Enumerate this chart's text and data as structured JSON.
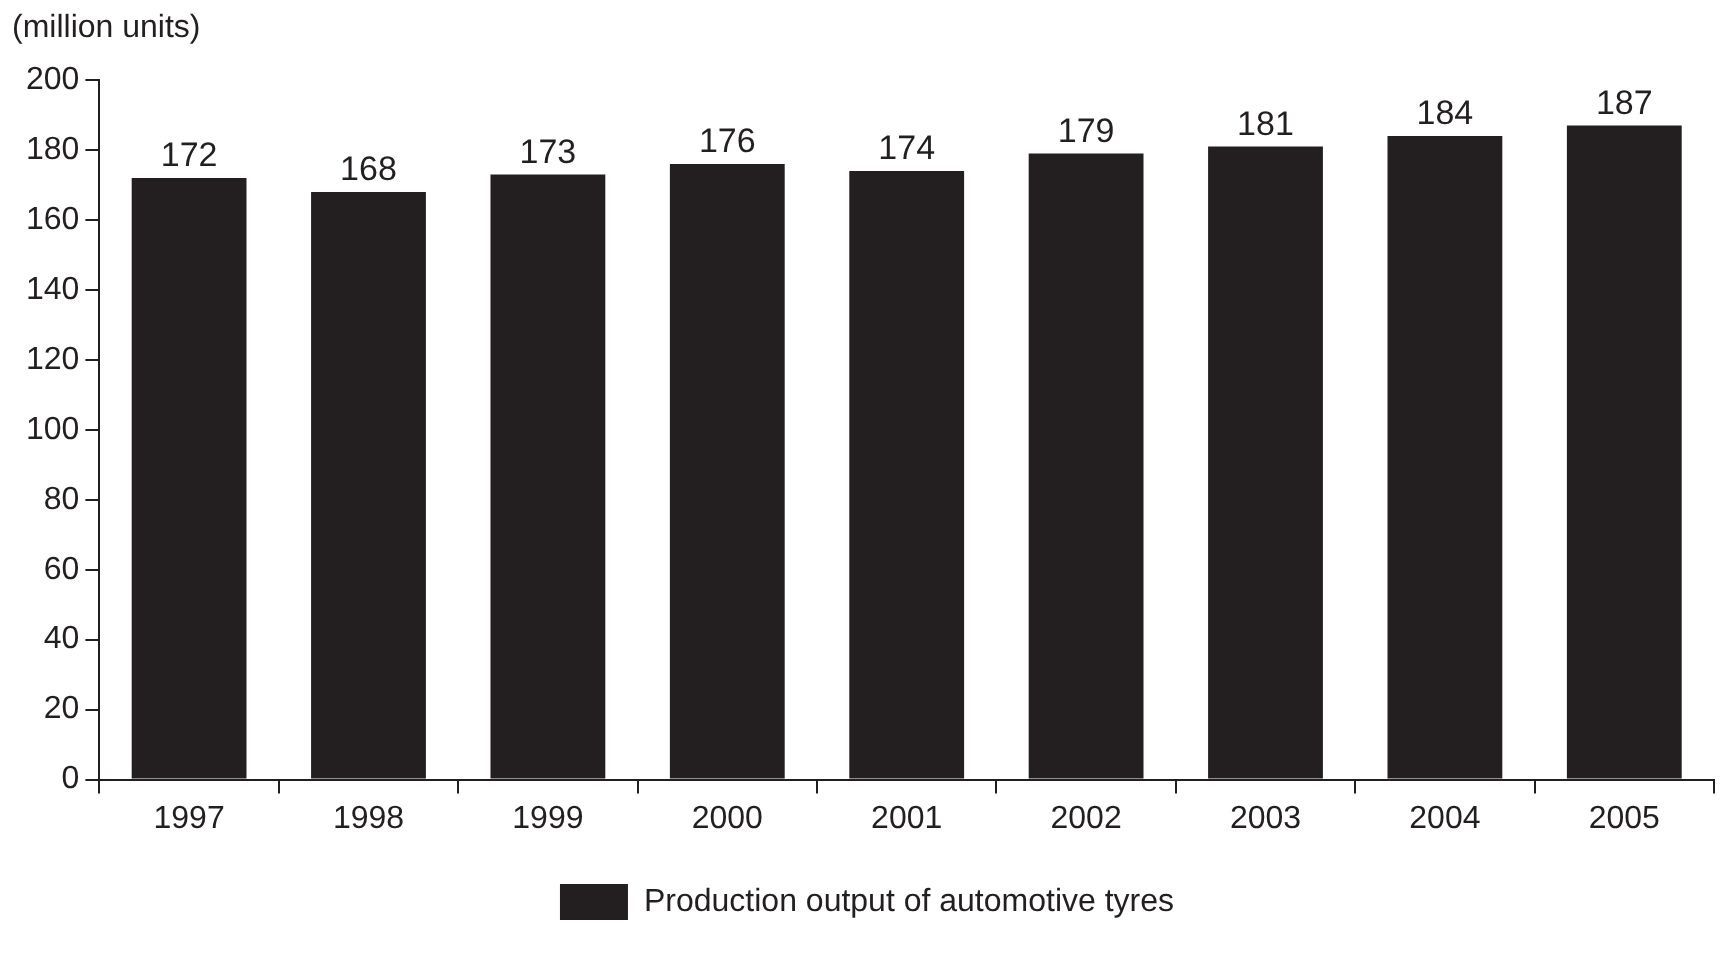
{
  "chart_data": {
    "type": "bar",
    "ylabel": "(million units)",
    "categories": [
      "1997",
      "1998",
      "1999",
      "2000",
      "2001",
      "2002",
      "2003",
      "2004",
      "2005"
    ],
    "series": [
      {
        "name": "Production output of automotive tyres",
        "color": "#231f20",
        "values": [
          172,
          168,
          173,
          176,
          174,
          179,
          181,
          184,
          187
        ]
      }
    ],
    "ylim": [
      0,
      200
    ],
    "yticks": [
      0,
      20,
      40,
      60,
      80,
      100,
      120,
      140,
      160,
      180,
      200
    ],
    "grid": false,
    "legend": "bottom",
    "data_labels": true
  }
}
